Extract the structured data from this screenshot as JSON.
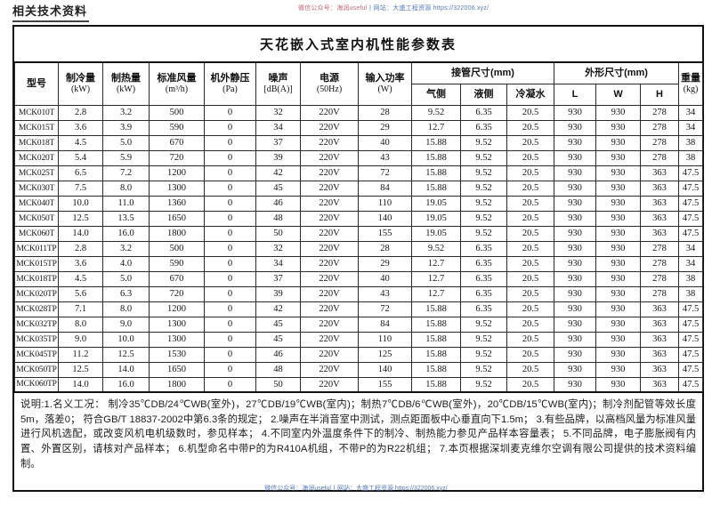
{
  "page": {
    "header_label": "相关技术资料",
    "watermark_top_wechat": "微信公众号：海润useful",
    "watermark_top_site": "丨网站：大盛工程资源 https://322006.xyz/",
    "watermark_bottom": "微信公众号：海润useful丨网站：大盛工程资源 https://322006.xyz/"
  },
  "colors": {
    "border": "#111111",
    "text": "#1a1a1a",
    "watermark_red": "#c06a7a",
    "watermark_blue": "#5a7ab8"
  },
  "table": {
    "title": "天花嵌入式室内机性能参数表",
    "columns": [
      {
        "label": "型号",
        "unit": ""
      },
      {
        "label": "制冷量",
        "unit": "(kW)"
      },
      {
        "label": "制热量",
        "unit": "(kW)"
      },
      {
        "label": "标准风量",
        "unit": "(m³/h)"
      },
      {
        "label": "机外静压",
        "unit": "(Pa)"
      },
      {
        "label": "噪声",
        "unit": "[dB(A)]"
      },
      {
        "label": "电源",
        "unit": "(50Hz)"
      },
      {
        "label": "输入功率",
        "unit": "(W)"
      }
    ],
    "groups": [
      {
        "label": "接管尺寸(mm)",
        "children": [
          "气侧",
          "液侧",
          "冷凝水"
        ]
      },
      {
        "label": "外形尺寸(mm)",
        "children": [
          "L",
          "W",
          "H"
        ]
      }
    ],
    "weight": {
      "label": "重量",
      "unit": "(kg)"
    },
    "rows": [
      [
        "MCK010T",
        "2.8",
        "3.2",
        "500",
        "0",
        "32",
        "220V",
        "28",
        "9.52",
        "6.35",
        "20.5",
        "930",
        "930",
        "278",
        "34"
      ],
      [
        "MCK015T",
        "3.6",
        "3.9",
        "590",
        "0",
        "34",
        "220V",
        "29",
        "12.7",
        "6.35",
        "20.5",
        "930",
        "930",
        "278",
        "34"
      ],
      [
        "MCK018T",
        "4.5",
        "5.0",
        "670",
        "0",
        "37",
        "220V",
        "40",
        "15.88",
        "9.52",
        "20.5",
        "930",
        "930",
        "278",
        "38"
      ],
      [
        "MCK020T",
        "5.4",
        "5.9",
        "720",
        "0",
        "39",
        "220V",
        "43",
        "15.88",
        "9.52",
        "20.5",
        "930",
        "930",
        "278",
        "38"
      ],
      [
        "MCK025T",
        "6.5",
        "7.2",
        "1200",
        "0",
        "42",
        "220V",
        "72",
        "15.88",
        "9.52",
        "20.5",
        "930",
        "930",
        "363",
        "47.5"
      ],
      [
        "MCK030T",
        "7.5",
        "8.0",
        "1300",
        "0",
        "45",
        "220V",
        "84",
        "15.88",
        "9.52",
        "20.5",
        "930",
        "930",
        "363",
        "47.5"
      ],
      [
        "MCK040T",
        "10.0",
        "11.0",
        "1360",
        "0",
        "46",
        "220V",
        "110",
        "19.05",
        "9.52",
        "20.5",
        "930",
        "930",
        "363",
        "47.5"
      ],
      [
        "MCK050T",
        "12.5",
        "13.5",
        "1650",
        "0",
        "48",
        "220V",
        "140",
        "19.05",
        "9.52",
        "20.5",
        "930",
        "930",
        "363",
        "47.5"
      ],
      [
        "MCK060T",
        "14.0",
        "16.0",
        "1800",
        "0",
        "50",
        "220V",
        "155",
        "19.05",
        "9.52",
        "20.5",
        "930",
        "930",
        "363",
        "47.5"
      ],
      [
        "MCK011TP",
        "2.8",
        "3.2",
        "500",
        "0",
        "32",
        "220V",
        "28",
        "9.52",
        "6.35",
        "20.5",
        "930",
        "930",
        "278",
        "34"
      ],
      [
        "MCK015TP",
        "3.6",
        "4.0",
        "590",
        "0",
        "34",
        "220V",
        "29",
        "12.7",
        "6.35",
        "20.5",
        "930",
        "930",
        "278",
        "34"
      ],
      [
        "MCK018TP",
        "4.5",
        "5.0",
        "670",
        "0",
        "37",
        "220V",
        "40",
        "12.7",
        "6.35",
        "20.5",
        "930",
        "930",
        "278",
        "38"
      ],
      [
        "MCK020TP",
        "5.6",
        "6.3",
        "720",
        "0",
        "39",
        "220V",
        "43",
        "12.7",
        "6.35",
        "20.5",
        "930",
        "930",
        "278",
        "38"
      ],
      [
        "MCK028TP",
        "7.1",
        "8.0",
        "1200",
        "0",
        "42",
        "220V",
        "72",
        "15.88",
        "6.35",
        "20.5",
        "930",
        "930",
        "363",
        "47.5"
      ],
      [
        "MCK032TP",
        "8.0",
        "9.0",
        "1300",
        "0",
        "45",
        "220V",
        "84",
        "15.88",
        "9.52",
        "20.5",
        "930",
        "930",
        "363",
        "47.5"
      ],
      [
        "MCK035TP",
        "9.0",
        "10.0",
        "1300",
        "0",
        "45",
        "220V",
        "110",
        "15.88",
        "9.52",
        "20.5",
        "930",
        "930",
        "363",
        "47.5"
      ],
      [
        "MCK045TP",
        "11.2",
        "12.5",
        "1530",
        "0",
        "46",
        "220V",
        "125",
        "15.88",
        "9.52",
        "20.5",
        "930",
        "930",
        "363",
        "47.5"
      ],
      [
        "MCK050TP",
        "12.5",
        "14.0",
        "1650",
        "0",
        "48",
        "220V",
        "140",
        "15.88",
        "9.52",
        "20.5",
        "930",
        "930",
        "363",
        "47.5"
      ],
      [
        "MCK060TP",
        "14.0",
        "16.0",
        "1800",
        "0",
        "50",
        "220V",
        "155",
        "15.88",
        "9.52",
        "20.5",
        "930",
        "930",
        "363",
        "47.5"
      ]
    ]
  },
  "notes": "说明:1.名义工况： 制冷35℃DB/24℃WB(室外)，27℃DB/19℃WB(室内)；制热7℃DB/6℃WB(室外)，20℃DB/15℃WB(室内)；制冷剂配管等效长度5m，落差0； 符合GB/T 18837-2002中第6.3条的规定； 2.噪声在半消音室中测试，测点距面板中心垂直向下1.5m； 3.有些品牌，以高档风量为标准风量进行风机选配，或改变风机电机级数时，参见样本； 4.不同室内外温度条件下的制冷、制热能力参见产品样本容量表； 5.不同品牌，电子膨胀阀有内置、外置区别，请核对产品样本； 6.机型命名中带P的为R410A机组，不带P的为R22机组； 7.本页根据深圳麦克维尔空调有限公司提供的技术资料编制。"
}
